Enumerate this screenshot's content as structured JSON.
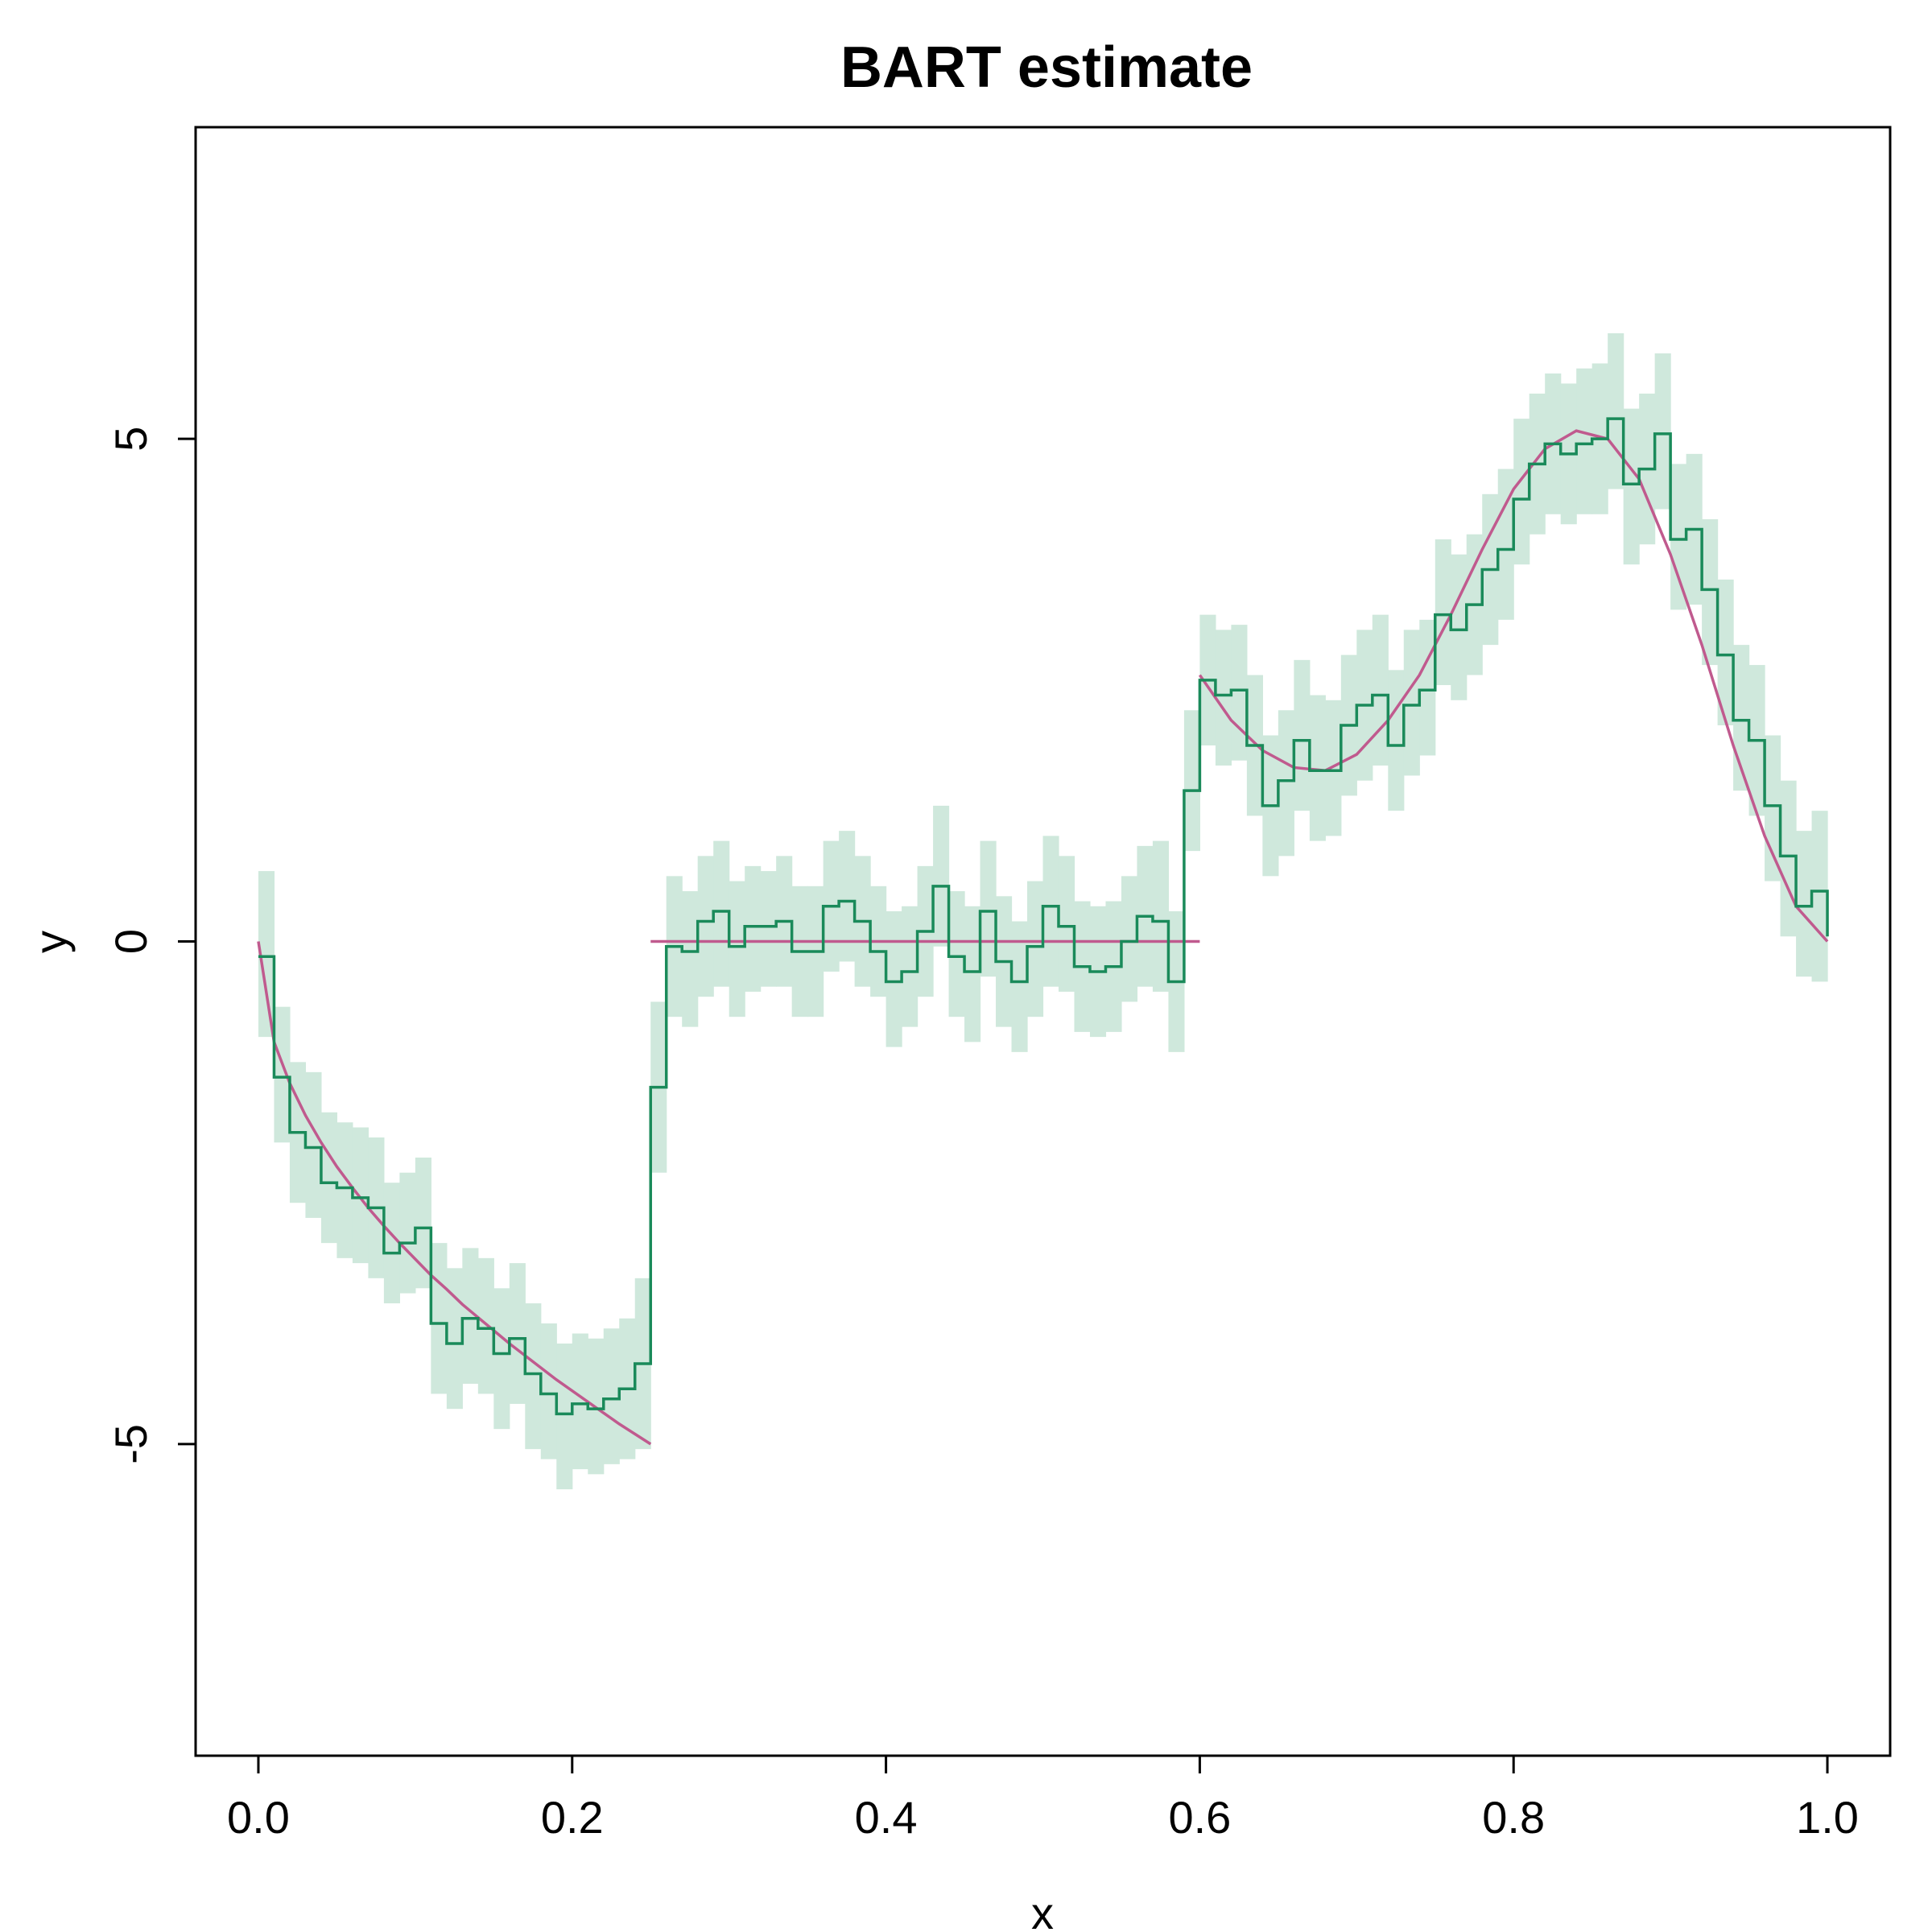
{
  "chart_data": {
    "type": "line",
    "title": "BART estimate",
    "xlabel": "x",
    "ylabel": "y",
    "xlim": [
      -0.04,
      1.04
    ],
    "ylim": [
      -8.1,
      8.1
    ],
    "x_ticks": [
      "0.0",
      "0.2",
      "0.4",
      "0.6",
      "0.8",
      "1.0"
    ],
    "y_ticks": [
      "-5",
      "0",
      "5"
    ],
    "grid": false,
    "colors": {
      "estimate": "#1a8a5a",
      "band": "#cfe8dc",
      "truth": "#c05a8e",
      "axis": "#000000"
    },
    "step_x": [
      0,
      0.01,
      0.02,
      0.03,
      0.04,
      0.05,
      0.06,
      0.07,
      0.08,
      0.09,
      0.1,
      0.11,
      0.12,
      0.13,
      0.14,
      0.15,
      0.16,
      0.17,
      0.18,
      0.19,
      0.2,
      0.21,
      0.22,
      0.23,
      0.24,
      0.25,
      0.26,
      0.27,
      0.28,
      0.29,
      0.3,
      0.31,
      0.32,
      0.33,
      0.34,
      0.35,
      0.36,
      0.37,
      0.38,
      0.39,
      0.4,
      0.41,
      0.42,
      0.43,
      0.44,
      0.45,
      0.46,
      0.47,
      0.48,
      0.49,
      0.5,
      0.51,
      0.52,
      0.53,
      0.54,
      0.55,
      0.56,
      0.57,
      0.58,
      0.59,
      0.6,
      0.61,
      0.62,
      0.63,
      0.64,
      0.65,
      0.66,
      0.67,
      0.68,
      0.69,
      0.7,
      0.71,
      0.72,
      0.73,
      0.74,
      0.75,
      0.76,
      0.77,
      0.78,
      0.79,
      0.8,
      0.81,
      0.82,
      0.83,
      0.84,
      0.85,
      0.86,
      0.87,
      0.88,
      0.89,
      0.9,
      0.91,
      0.92,
      0.93,
      0.94,
      0.95,
      0.96,
      0.97,
      0.98,
      0.99,
      1.0
    ],
    "series": [
      {
        "role": "estimate",
        "values": [
          -0.15,
          -1.35,
          -1.9,
          -2.05,
          -2.4,
          -2.45,
          -2.55,
          -2.65,
          -3.1,
          -3.0,
          -2.85,
          -3.8,
          -4.0,
          -3.75,
          -3.85,
          -4.1,
          -3.95,
          -4.3,
          -4.5,
          -4.7,
          -4.6,
          -4.65,
          -4.55,
          -4.45,
          -4.2,
          -1.45,
          -0.05,
          -0.1,
          0.2,
          0.3,
          -0.05,
          0.15,
          0.15,
          0.2,
          -0.1,
          -0.1,
          0.35,
          0.4,
          0.2,
          -0.1,
          -0.4,
          -0.3,
          0.1,
          0.55,
          -0.15,
          -0.3,
          0.3,
          -0.2,
          -0.4,
          -0.05,
          0.35,
          0.15,
          -0.25,
          -0.3,
          -0.25,
          0.0,
          0.25,
          0.2,
          -0.4,
          1.5,
          2.6,
          2.45,
          2.5,
          1.95,
          1.35,
          1.6,
          2.0,
          1.7,
          1.7,
          2.15,
          2.35,
          2.45,
          1.95,
          2.35,
          2.5,
          3.25,
          3.1,
          3.35,
          3.7,
          3.9,
          4.4,
          4.75,
          4.95,
          4.85,
          4.95,
          5.0,
          5.2,
          4.55,
          4.7,
          5.05,
          4.0,
          4.1,
          3.5,
          2.85,
          2.2,
          2.0,
          1.35,
          0.85,
          0.35,
          0.5,
          0.05
        ],
        "lower": [
          -0.95,
          -2.0,
          -2.6,
          -2.75,
          -3.0,
          -3.15,
          -3.2,
          -3.35,
          -3.6,
          -3.5,
          -3.45,
          -4.5,
          -4.65,
          -4.4,
          -4.5,
          -4.85,
          -4.6,
          -5.05,
          -5.15,
          -5.45,
          -5.25,
          -5.3,
          -5.2,
          -5.15,
          -5.05,
          -2.3,
          -0.75,
          -0.85,
          -0.55,
          -0.45,
          -0.75,
          -0.5,
          -0.45,
          -0.45,
          -0.75,
          -0.75,
          -0.3,
          -0.2,
          -0.45,
          -0.55,
          -1.05,
          -0.85,
          -0.55,
          -0.05,
          -0.75,
          -1.0,
          -0.35,
          -0.85,
          -1.1,
          -0.75,
          -0.45,
          -0.5,
          -0.9,
          -0.95,
          -0.9,
          -0.6,
          -0.45,
          -0.5,
          -1.1,
          0.9,
          1.95,
          1.75,
          1.8,
          1.25,
          0.65,
          0.85,
          1.3,
          1.0,
          1.05,
          1.45,
          1.6,
          1.75,
          1.3,
          1.65,
          1.85,
          2.55,
          2.4,
          2.65,
          2.95,
          3.2,
          3.75,
          4.05,
          4.25,
          4.15,
          4.25,
          4.25,
          4.5,
          3.75,
          3.95,
          4.3,
          3.3,
          3.35,
          2.75,
          2.15,
          1.5,
          1.25,
          0.6,
          0.05,
          -0.35,
          -0.4,
          -0.85
        ],
        "upper": [
          0.7,
          -0.65,
          -1.2,
          -1.3,
          -1.7,
          -1.8,
          -1.85,
          -1.95,
          -2.4,
          -2.3,
          -2.15,
          -3.0,
          -3.25,
          -3.05,
          -3.15,
          -3.45,
          -3.2,
          -3.6,
          -3.8,
          -4.0,
          -3.9,
          -3.95,
          -3.85,
          -3.75,
          -3.35,
          -0.6,
          0.65,
          0.5,
          0.85,
          1.0,
          0.6,
          0.75,
          0.7,
          0.85,
          0.55,
          0.55,
          1.0,
          1.1,
          0.85,
          0.55,
          0.3,
          0.35,
          0.75,
          1.35,
          0.5,
          0.35,
          1.0,
          0.45,
          0.2,
          0.6,
          1.05,
          0.85,
          0.4,
          0.35,
          0.4,
          0.65,
          0.95,
          1.0,
          0.3,
          2.3,
          3.25,
          3.1,
          3.15,
          2.65,
          2.05,
          2.3,
          2.8,
          2.45,
          2.4,
          2.85,
          3.1,
          3.25,
          2.7,
          3.1,
          3.2,
          4.0,
          3.85,
          4.05,
          4.45,
          4.7,
          5.2,
          5.45,
          5.65,
          5.55,
          5.7,
          5.75,
          6.05,
          5.3,
          5.45,
          5.85,
          4.75,
          4.85,
          4.2,
          3.6,
          2.95,
          2.75,
          2.05,
          1.6,
          1.1,
          1.3,
          0.9
        ]
      }
    ],
    "truth_segments": [
      {
        "x": [
          0,
          0.01,
          0.02,
          0.03,
          0.04,
          0.05,
          0.06,
          0.07,
          0.08,
          0.09,
          0.1,
          0.11,
          0.12,
          0.13,
          0.14,
          0.15,
          0.16,
          0.17,
          0.18,
          0.19,
          0.2,
          0.21,
          0.22,
          0.23,
          0.24,
          0.25
        ],
        "y": [
          0.0,
          -1.0,
          -1.41,
          -1.73,
          -2.0,
          -2.24,
          -2.45,
          -2.65,
          -2.83,
          -3.0,
          -3.16,
          -3.32,
          -3.46,
          -3.61,
          -3.74,
          -3.87,
          -4.0,
          -4.12,
          -4.24,
          -4.36,
          -4.47,
          -4.58,
          -4.69,
          -4.8,
          -4.9,
          -5.0
        ]
      },
      {
        "x": [
          0.25,
          0.6
        ],
        "y": [
          0.0,
          0.0
        ]
      },
      {
        "x": [
          0.6,
          0.62,
          0.64,
          0.66,
          0.68,
          0.7,
          0.72,
          0.74,
          0.76,
          0.78,
          0.8,
          0.82,
          0.84,
          0.86,
          0.88,
          0.9,
          0.92,
          0.94,
          0.96,
          0.98,
          1.0
        ],
        "y": [
          2.65,
          2.2,
          1.9,
          1.73,
          1.7,
          1.86,
          2.2,
          2.65,
          3.25,
          3.9,
          4.5,
          4.9,
          5.08,
          5.0,
          4.6,
          3.85,
          2.95,
          1.95,
          1.05,
          0.35,
          0.0
        ]
      }
    ]
  }
}
